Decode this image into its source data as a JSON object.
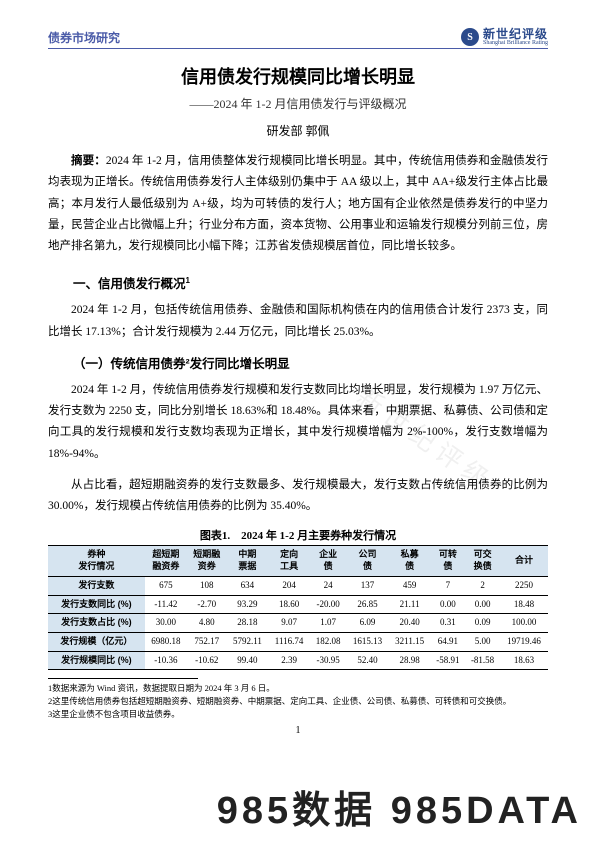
{
  "header": {
    "left": "债券市场研究",
    "brand_cn": "新世纪评级",
    "brand_en": "Shanghai Brilliance Rating",
    "logo_glyph": "S"
  },
  "title": "信用债发行规模同比增长明显",
  "subtitle": "——2024 年 1-2 月信用债发行与评级概况",
  "author": "研发部 郭佩",
  "abstract_label": "摘要：",
  "abstract_body": "2024 年 1-2 月，信用债整体发行规模同比增长明显。其中，传统信用债券和金融债发行均表现为正增长。传统信用债券发行人主体级别仍集中于 AA 级以上，其中 AA+级发行主体占比最高；本月发行人最低级别为 A+级，均为可转债的发行人；地方国有企业依然是债券发行的中坚力量，民营企业占比微幅上升；行业分布方面，资本货物、公用事业和运输发行规模分列前三位，房地产排名第九，发行规模同比小幅下降；江苏省发债规模居首位，同比增长较多。",
  "section1_title": "一、信用债发行概况",
  "section1_sup": "1",
  "p1": "2024 年 1-2 月，包括传统信用债券、金融债和国际机构债在内的信用债合计发行 2373 支，同比增长 17.13%；合计发行规模为 2.44 万亿元，同比增长 25.03%。",
  "subsection1_title": "（一）传统信用债券²发行同比增长明显",
  "p2": "2024 年 1-2 月，传统信用债券发行规模和发行支数同比均增长明显，发行规模为 1.97 万亿元、发行支数为 2250 支，同比分别增长 18.63%和 18.48%。具体来看，中期票据、私募债、公司债和定向工具的发行规模和发行支数均表现为正增长，其中发行规模增幅为 2%-100%，发行支数增幅为 18%-94%。",
  "p3": "从占比看，超短期融资券的发行支数最多、发行规模最大，发行支数占传统信用债券的比例为 30.00%，发行规模占传统信用债券的比例为 35.40%。",
  "table": {
    "caption": "图表1.　2024 年 1-2 月主要券种发行情况",
    "header_bg": "#d6e4f0",
    "columns": [
      "券种\n发行情况",
      "超短期\n融资券",
      "短期融\n资券",
      "中期\n票据",
      "定向\n工具",
      "企业\n债",
      "公司\n债",
      "私募\n债",
      "可转\n债",
      "可交\n换债",
      "合计"
    ],
    "rows": [
      {
        "label": "发行支数",
        "cells": [
          "675",
          "108",
          "634",
          "204",
          "24",
          "137",
          "459",
          "7",
          "2",
          "2250"
        ]
      },
      {
        "label": "发行支数同比 (%)",
        "cells": [
          "-11.42",
          "-2.70",
          "93.29",
          "18.60",
          "-20.00",
          "26.85",
          "21.11",
          "0.00",
          "0.00",
          "18.48"
        ]
      },
      {
        "label": "发行支数占比 (%)",
        "cells": [
          "30.00",
          "4.80",
          "28.18",
          "9.07",
          "1.07",
          "6.09",
          "20.40",
          "0.31",
          "0.09",
          "100.00"
        ]
      },
      {
        "label": "发行规模（亿元）",
        "cells": [
          "6980.18",
          "752.17",
          "5792.11",
          "1116.74",
          "182.08",
          "1615.13",
          "3211.15",
          "64.91",
          "5.00",
          "19719.46"
        ]
      },
      {
        "label": "发行规模同比 (%)",
        "cells": [
          "-10.36",
          "-10.62",
          "99.40",
          "2.39",
          "-30.95",
          "52.40",
          "28.98",
          "-58.91",
          "-81.58",
          "18.63"
        ]
      }
    ]
  },
  "footnotes": [
    "1数据来源为 Wind 资讯，数据提取日期为 2024 年 3 月 6 日。",
    "2这里传统信用债券包括超短期融资券、短期融资券、中期票据、定向工具、企业债、公司债、私募债、可转债和可交换债。",
    "3这里企业债不包含项目收益债券。"
  ],
  "page_number": "1",
  "watermark_bottom": "985数据  985DATA",
  "watermark_diag": "新世纪评级"
}
